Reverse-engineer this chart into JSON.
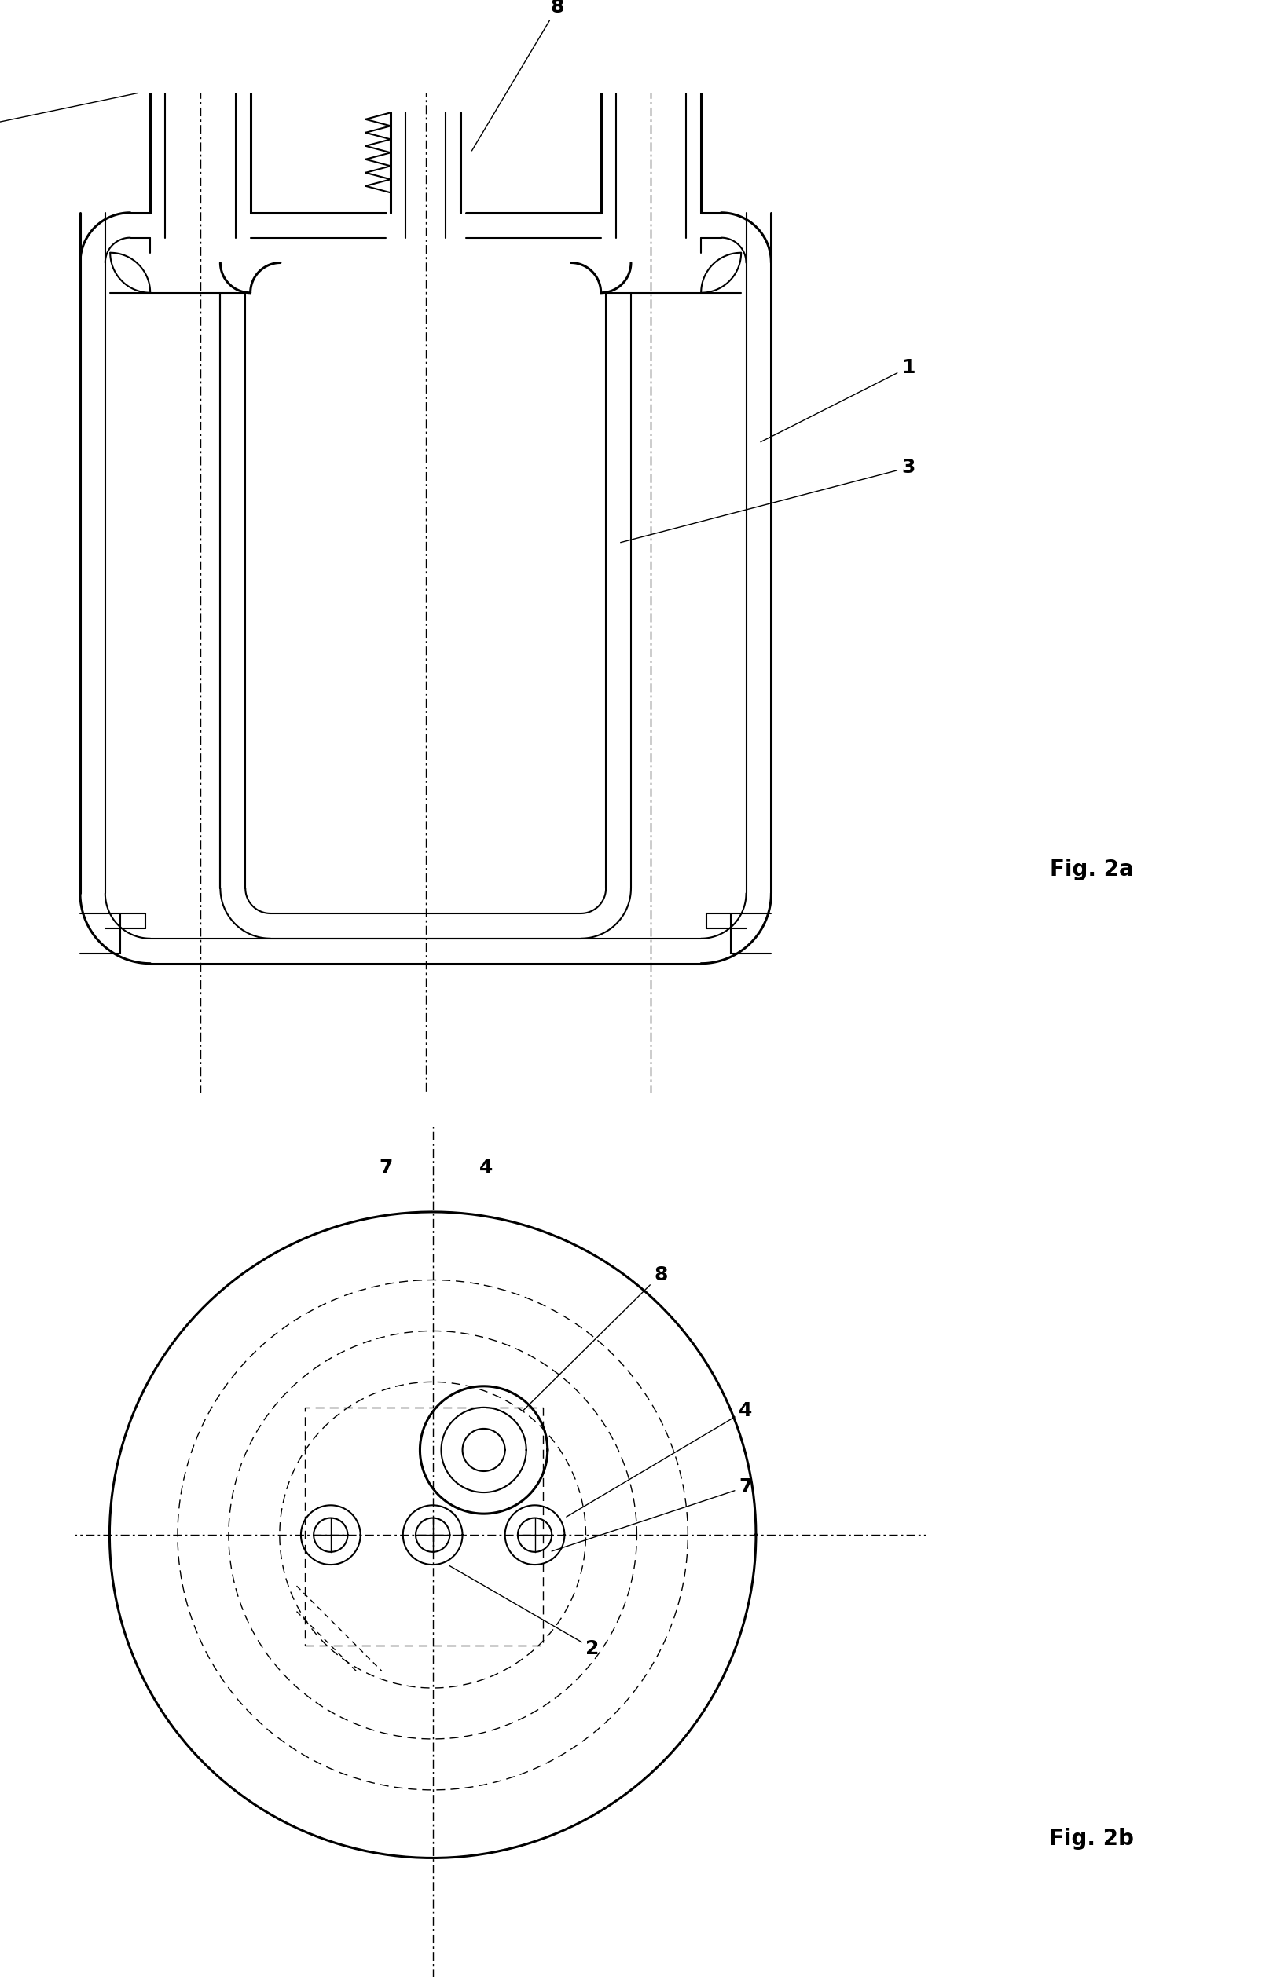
{
  "fig_width": 16.34,
  "fig_height": 25.17,
  "bg_color": "#ffffff",
  "lc": "#000000",
  "fig2a_label": "Fig. 2a",
  "fig2b_label": "Fig. 2b",
  "lw_thick": 2.2,
  "lw_med": 1.5,
  "lw_thin": 1.0,
  "lw_dashdot": 1.0,
  "fontsize_label": 18,
  "fontsize_fig": 20
}
